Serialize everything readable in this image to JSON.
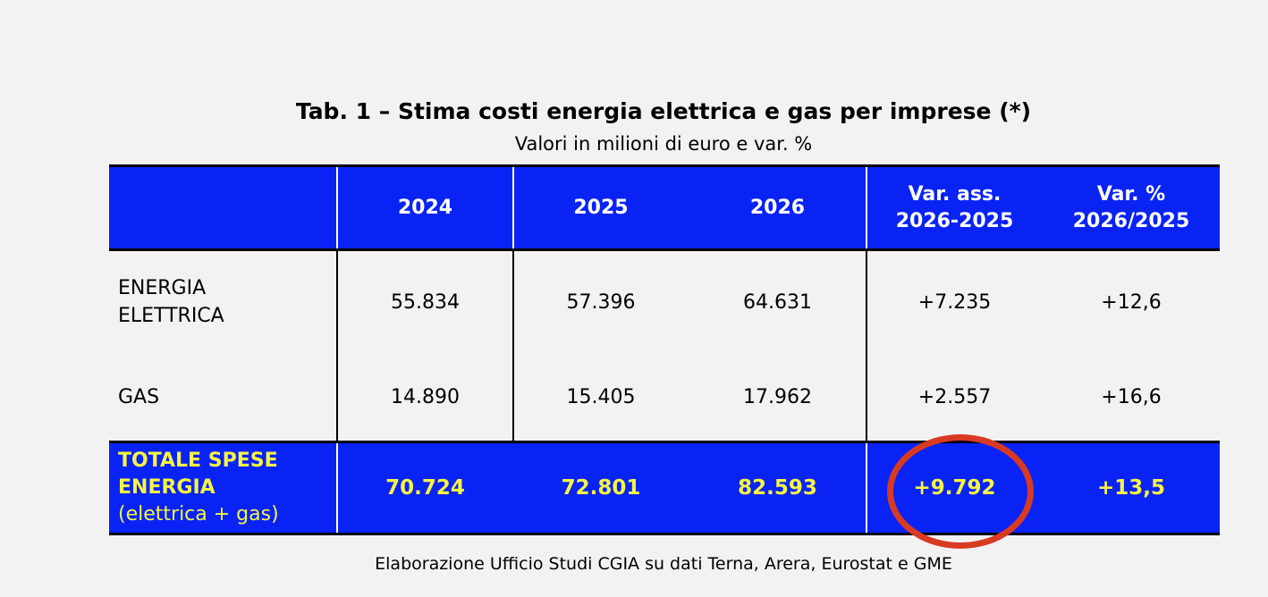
{
  "title": "Tab. 1 – Stima costi energia elettrica e gas per imprese (*)",
  "subtitle": "Valori in milioni di euro e var. %",
  "header": {
    "columns": [
      "",
      "2024",
      "2025",
      "2026",
      [
        "Var. ass.",
        "2026-2025"
      ],
      [
        "Var. %",
        "2026/2025"
      ]
    ]
  },
  "rows": [
    {
      "label": [
        "ENERGIA",
        "ELETTRICA"
      ],
      "values": [
        "55.834",
        "57.396",
        "64.631",
        "+7.235",
        "+12,6"
      ]
    },
    {
      "label": [
        "GAS"
      ],
      "values": [
        "14.890",
        "15.405",
        "17.962",
        "+2.557",
        "+16,6"
      ]
    }
  ],
  "total": {
    "label": [
      "TOTALE SPESE",
      "ENERGIA",
      "(elettrica + gas)"
    ],
    "values": [
      "70.724",
      "72.801",
      "82.593",
      "+9.792",
      "+13,5"
    ]
  },
  "highlight": {
    "shape": "ellipse",
    "target": "total var. ass.",
    "color": "#d93a22"
  },
  "colors": {
    "header_bg": "#0a23f5",
    "total_text": "#f5f542",
    "background": "#f2f2f2"
  },
  "footer": "Elaborazione Ufficio Studi CGIA su dati Terna, Arera, Eurostat e GME"
}
